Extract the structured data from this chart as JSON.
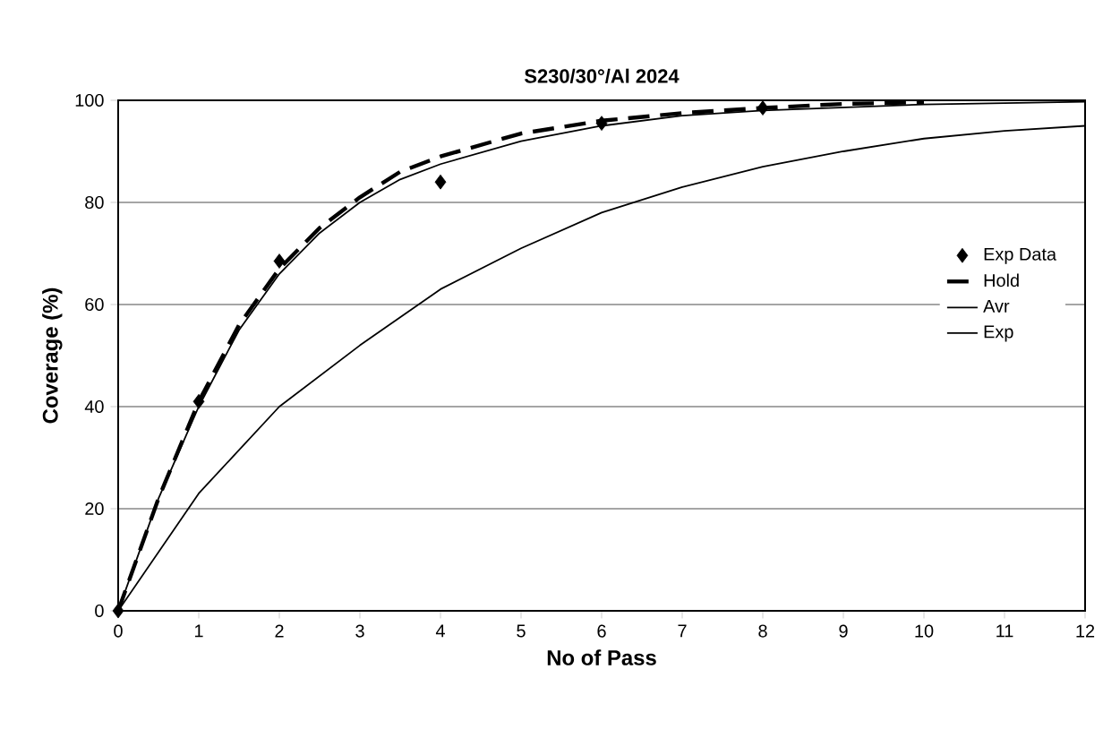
{
  "chart_data": {
    "type": "line",
    "title": "S230/30°/Al 2024",
    "xlabel": "No of Pass",
    "ylabel": "Coverage (%)",
    "xlim": [
      0,
      12
    ],
    "xticks": [
      0,
      1,
      2,
      3,
      4,
      5,
      6,
      7,
      8,
      9,
      10,
      11,
      12
    ],
    "ylim": [
      0,
      100
    ],
    "yticks": [
      0,
      20,
      40,
      60,
      80,
      100
    ],
    "grid": "y",
    "legend": "right",
    "series": [
      {
        "name": "Exp Data",
        "type": "scatter",
        "marker": "diamond",
        "color": "#000000",
        "x": [
          0,
          1,
          2,
          4,
          6,
          8
        ],
        "values": [
          0,
          41,
          68.5,
          84,
          95.5,
          98.5
        ]
      },
      {
        "name": "Hold",
        "line_style": "dashed",
        "color": "#000000",
        "x": [
          0,
          0.5,
          1,
          1.5,
          2,
          2.5,
          3,
          3.5,
          4,
          5,
          6,
          7,
          8,
          9,
          10
        ],
        "values": [
          0,
          22,
          41,
          56,
          67,
          75,
          81,
          86,
          89,
          93.5,
          96,
          97.5,
          98.5,
          99.3,
          99.6
        ]
      },
      {
        "name": "Avr",
        "line_style": "solid",
        "color": "#000000",
        "x": [
          0,
          1,
          2,
          3,
          4,
          5,
          6,
          7,
          8,
          9,
          10,
          11,
          12
        ],
        "values": [
          0,
          23,
          40,
          52,
          63,
          71,
          78,
          83,
          87,
          90,
          92.5,
          94,
          95
        ]
      },
      {
        "name": "Exp",
        "line_style": "solid",
        "color": "#000000",
        "x": [
          0,
          0.5,
          1,
          1.5,
          2,
          2.5,
          3,
          3.5,
          4,
          5,
          6,
          7,
          8,
          10,
          12
        ],
        "values": [
          0,
          22,
          40,
          55,
          66,
          74,
          80,
          84.5,
          87.5,
          92,
          95,
          97,
          98,
          99.2,
          99.7
        ]
      }
    ]
  }
}
